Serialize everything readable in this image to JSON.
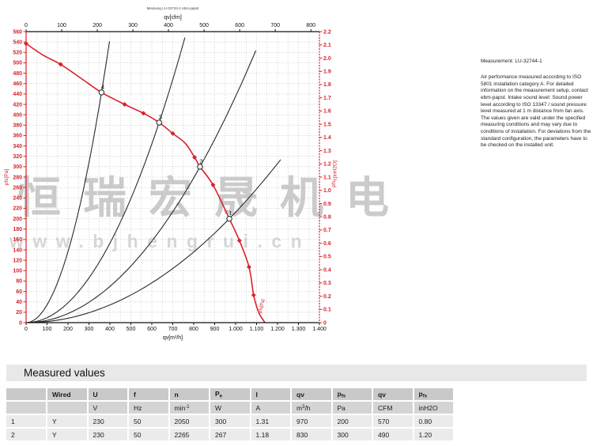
{
  "watermark": {
    "cn": "恒瑞宏晟机电",
    "url": "www.bjhengrui.cn"
  },
  "info": {
    "measurement": "Measurement: LU-32744-1",
    "note": "Air performance measured according to ISO 5801 installation category A. For detailed information on the measurement setup, contact ebm-papst. Intake sound level: Sound power level according to ISO 13347 / sound pressure level measured at 1 m distance from fan axis. The values given are valid under the specified measuring conditions and may vary due to conditions of installation. For deviations from the standard configuration, the parameters have to be checked on the installed unit."
  },
  "chart_data": {
    "type": "line",
    "micro_title": "Messung LU-32744-1 ebm-papst",
    "colors": {
      "red": "#d8232a",
      "black": "#1a1a1a",
      "grid": "#b9b9b9",
      "curve_black": "#2a2a2a"
    },
    "axes": {
      "top": {
        "label": "qv[cfm]",
        "min": 0,
        "max": 800,
        "step": 100
      },
      "bottom": {
        "label": "qv[m³/h]",
        "min": 0,
        "max": 1400,
        "step": 100
      },
      "left": {
        "label": "pfs[Pa]",
        "min": 0,
        "max": 560,
        "step": 20
      },
      "right": {
        "label": "pfs_E[inH2O]",
        "min": 0,
        "max": 2.2,
        "step": 0.1
      }
    },
    "fan_curve": {
      "label": "pfs[Pa]",
      "points": [
        [
          0,
          537
        ],
        [
          80,
          515
        ],
        [
          165,
          497
        ],
        [
          270,
          468
        ],
        [
          360,
          443
        ],
        [
          470,
          420
        ],
        [
          560,
          403
        ],
        [
          635,
          385
        ],
        [
          700,
          364
        ],
        [
          760,
          345
        ],
        [
          804,
          318
        ],
        [
          830,
          300
        ],
        [
          892,
          265
        ],
        [
          970,
          200
        ],
        [
          1018,
          158
        ],
        [
          1064,
          107
        ],
        [
          1086,
          53
        ],
        [
          1110,
          20
        ],
        [
          1140,
          0
        ]
      ],
      "markers": [
        [
          0,
          537
        ],
        [
          165,
          497
        ],
        [
          470,
          420
        ],
        [
          560,
          403
        ],
        [
          700,
          364
        ],
        [
          804,
          318
        ],
        [
          892,
          265
        ],
        [
          1018,
          158
        ],
        [
          1064,
          107
        ],
        [
          1086,
          53
        ]
      ]
    },
    "operating_points": [
      {
        "n": "1",
        "qv": 970,
        "pfs": 200
      },
      {
        "n": "2",
        "qv": 830,
        "pfs": 300
      },
      {
        "n": "3",
        "qv": 635,
        "pfs": 385
      },
      {
        "n": "4",
        "qv": 360,
        "pfs": 443
      }
    ],
    "system_curves": [
      {
        "qv": 970,
        "pfs": 200,
        "qv_end": 1215
      },
      {
        "qv": 830,
        "pfs": 300,
        "qv_end": 1115
      },
      {
        "qv": 635,
        "pfs": 385,
        "qv_end": 758
      },
      {
        "qv": 360,
        "pfs": 443,
        "qv_end": 398
      }
    ]
  },
  "table": {
    "title": "Measured values",
    "headers": [
      "",
      "Wired",
      "U",
      "f",
      "n",
      "P_e",
      "I",
      "qv",
      "p_fs",
      "qv",
      "p_fs"
    ],
    "units": [
      "",
      "",
      "V",
      "Hz",
      "min^-1",
      "W",
      "A",
      "m^3/h",
      "Pa",
      "CFM",
      "inH2O"
    ],
    "rows": [
      [
        "1",
        "Y",
        "230",
        "50",
        "2050",
        "300",
        "1.31",
        "970",
        "200",
        "570",
        "0.80"
      ],
      [
        "2",
        "Y",
        "230",
        "50",
        "2265",
        "267",
        "1.18",
        "830",
        "300",
        "490",
        "1.20"
      ]
    ]
  }
}
